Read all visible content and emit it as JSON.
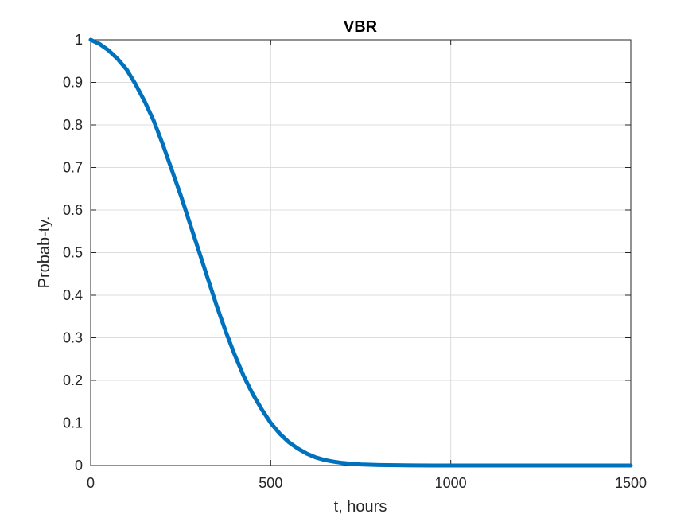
{
  "chart_data": {
    "type": "line",
    "title": "VBR",
    "xlabel": "t, hours",
    "ylabel": "Probab-ty.",
    "xlim": [
      0,
      1500
    ],
    "ylim": [
      0,
      1
    ],
    "grid": true,
    "xticks": [
      0,
      500,
      1000,
      1500
    ],
    "xtick_labels": [
      "0",
      "500",
      "1000",
      "1500"
    ],
    "yticks": [
      0,
      0.1,
      0.2,
      0.3,
      0.4,
      0.5,
      0.6,
      0.7,
      0.8,
      0.9,
      1
    ],
    "ytick_labels": [
      "0",
      "0.1",
      "0.2",
      "0.3",
      "0.4",
      "0.5",
      "0.6",
      "0.7",
      "0.8",
      "0.9",
      "1"
    ],
    "series": [
      {
        "color": "#0072BD",
        "x": [
          0,
          25,
          50,
          75,
          100,
          125,
          150,
          175,
          200,
          225,
          250,
          275,
          300,
          325,
          350,
          375,
          400,
          425,
          450,
          475,
          500,
          525,
          550,
          575,
          600,
          625,
          650,
          675,
          700,
          725,
          750,
          800,
          850,
          900,
          950,
          1000,
          1100,
          1200,
          1300,
          1400,
          1500
        ],
        "y": [
          1.0,
          0.99,
          0.975,
          0.955,
          0.93,
          0.895,
          0.855,
          0.81,
          0.755,
          0.695,
          0.635,
          0.57,
          0.505,
          0.44,
          0.375,
          0.315,
          0.26,
          0.21,
          0.168,
          0.132,
          0.1,
          0.075,
          0.055,
          0.04,
          0.028,
          0.019,
          0.013,
          0.009,
          0.006,
          0.004,
          0.0025,
          0.0012,
          0.0006,
          0.0003,
          0.0001,
          0.0,
          0.0,
          0.0,
          0.0,
          0.0,
          0.0
        ]
      }
    ]
  }
}
